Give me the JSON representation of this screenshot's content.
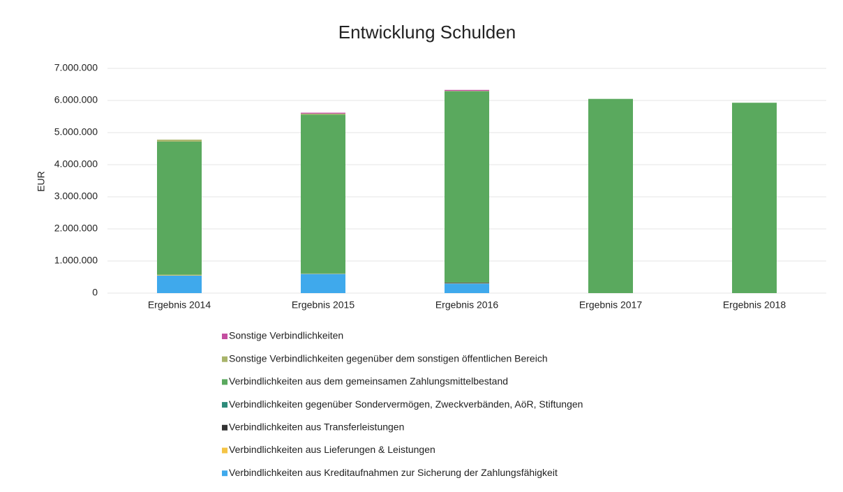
{
  "chart_data": {
    "type": "stacked_bar",
    "title": "Entwicklung Schulden",
    "y_label": "EUR",
    "categories": [
      "Ergebnis 2014",
      "Ergebnis 2015",
      "Ergebnis 2016",
      "Ergebnis 2017",
      "Ergebnis 2018"
    ],
    "series": [
      {
        "name": "Verbindlichkeiten aus Kreditaufnahmen zur Sicherung der Zahlungsfähigkeit",
        "color": "#3fa9ec",
        "values": [
          550000,
          600000,
          300000,
          0,
          0
        ]
      },
      {
        "name": "Verbindlichkeiten aus Lieferungen & Leistungen",
        "color": "#f5c445",
        "values": [
          20000,
          10000,
          10000,
          0,
          0
        ]
      },
      {
        "name": "Verbindlichkeiten aus Transferleistungen",
        "color": "#333333",
        "values": [
          0,
          0,
          20000,
          0,
          0
        ]
      },
      {
        "name": "Verbindlichkeiten gegenüber Sondervermögen, Zweckverbänden, AöR, Stiftungen",
        "color": "#2e8b7a",
        "values": [
          0,
          0,
          0,
          0,
          0
        ]
      },
      {
        "name": "Verbindlichkeiten aus dem gemeinsamen Zahlungsmittelbestand",
        "color": "#5aa95e",
        "values": [
          4150000,
          4950000,
          5960000,
          6050000,
          5930000
        ]
      },
      {
        "name": "Sonstige Verbindlichkeiten gegenüber dem sonstigen öffentlichen Bereich",
        "color": "#a8b46a",
        "values": [
          60000,
          30000,
          10000,
          0,
          0
        ]
      },
      {
        "name": "Sonstige Verbindlichkeiten",
        "color": "#c44ea0",
        "values": [
          0,
          30000,
          30000,
          0,
          0
        ]
      }
    ],
    "ylim": [
      0,
      7000000
    ],
    "yticks": [
      0,
      {
        "value": 1000000,
        "label": "1.000.000"
      },
      {
        "value": 2000000,
        "label": "2.000.000"
      },
      {
        "value": 3000000,
        "label": "3.000.000"
      },
      {
        "value": 4000000,
        "label": "4.000.000"
      },
      {
        "value": 5000000,
        "label": "5.000.000"
      },
      {
        "value": 6000000,
        "label": "6.000.000"
      },
      {
        "value": 7000000,
        "label": "7.000.000"
      }
    ],
    "grid": true
  }
}
